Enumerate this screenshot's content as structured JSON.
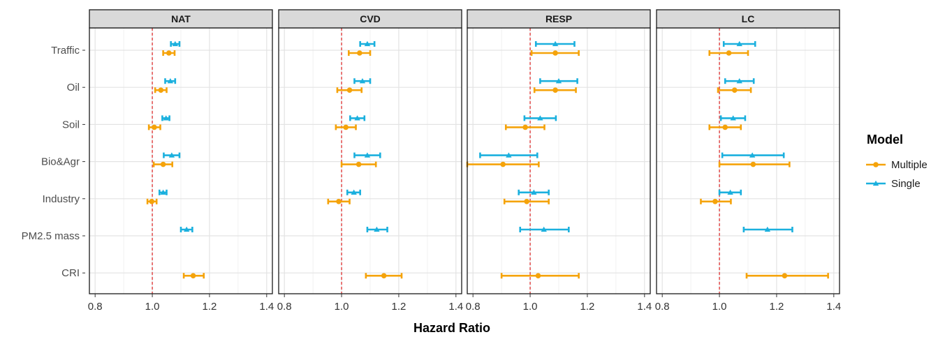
{
  "chart_data": {
    "type": "forest",
    "xlabel": "Hazard Ratio",
    "xlim": [
      0.78,
      1.42
    ],
    "xticks": [
      0.8,
      1.0,
      1.2,
      1.4
    ],
    "xtick_labels": [
      "0.8",
      "1.0",
      "1.2",
      "1.4"
    ],
    "reference_line": 1.0,
    "categories": [
      "Traffic",
      "Oil",
      "Soil",
      "Bio&Agr",
      "Industry",
      "PM2.5 mass",
      "CRI"
    ],
    "legend": {
      "title": "Model",
      "entries": [
        {
          "name": "Multiple",
          "color": "#F5A30A",
          "marker": "circle"
        },
        {
          "name": "Single",
          "color": "#1BB0DE",
          "marker": "triangle"
        }
      ]
    },
    "panels": [
      {
        "title": "NAT",
        "series": [
          {
            "name": "Single",
            "points": [
              {
                "category": "Traffic",
                "est": 1.08,
                "lo": 1.065,
                "hi": 1.095
              },
              {
                "category": "Oil",
                "est": 1.063,
                "lo": 1.045,
                "hi": 1.08
              },
              {
                "category": "Soil",
                "est": 1.048,
                "lo": 1.035,
                "hi": 1.06
              },
              {
                "category": "Bio&Agr",
                "est": 1.068,
                "lo": 1.04,
                "hi": 1.095
              },
              {
                "category": "Industry",
                "est": 1.038,
                "lo": 1.025,
                "hi": 1.05
              },
              {
                "category": "PM2.5 mass",
                "est": 1.12,
                "lo": 1.1,
                "hi": 1.14
              }
            ]
          },
          {
            "name": "Multiple",
            "points": [
              {
                "category": "Traffic",
                "est": 1.058,
                "lo": 1.038,
                "hi": 1.078
              },
              {
                "category": "Oil",
                "est": 1.03,
                "lo": 1.01,
                "hi": 1.05
              },
              {
                "category": "Soil",
                "est": 1.007,
                "lo": 0.988,
                "hi": 1.028
              },
              {
                "category": "Bio&Agr",
                "est": 1.038,
                "lo": 1.005,
                "hi": 1.07
              },
              {
                "category": "Industry",
                "est": 0.998,
                "lo": 0.983,
                "hi": 1.015
              },
              {
                "category": "CRI",
                "est": 1.143,
                "lo": 1.11,
                "hi": 1.18
              }
            ]
          }
        ]
      },
      {
        "title": "CVD",
        "series": [
          {
            "name": "Single",
            "points": [
              {
                "category": "Traffic",
                "est": 1.09,
                "lo": 1.065,
                "hi": 1.115
              },
              {
                "category": "Oil",
                "est": 1.073,
                "lo": 1.045,
                "hi": 1.1
              },
              {
                "category": "Soil",
                "est": 1.055,
                "lo": 1.03,
                "hi": 1.08
              },
              {
                "category": "Bio&Agr",
                "est": 1.09,
                "lo": 1.045,
                "hi": 1.135
              },
              {
                "category": "Industry",
                "est": 1.043,
                "lo": 1.02,
                "hi": 1.065
              },
              {
                "category": "PM2.5 mass",
                "est": 1.123,
                "lo": 1.09,
                "hi": 1.16
              }
            ]
          },
          {
            "name": "Multiple",
            "points": [
              {
                "category": "Traffic",
                "est": 1.063,
                "lo": 1.025,
                "hi": 1.1
              },
              {
                "category": "Oil",
                "est": 1.028,
                "lo": 0.985,
                "hi": 1.07
              },
              {
                "category": "Soil",
                "est": 1.015,
                "lo": 0.98,
                "hi": 1.05
              },
              {
                "category": "Bio&Agr",
                "est": 1.06,
                "lo": 1.0,
                "hi": 1.12
              },
              {
                "category": "Industry",
                "est": 0.99,
                "lo": 0.953,
                "hi": 1.028
              },
              {
                "category": "CRI",
                "est": 1.148,
                "lo": 1.085,
                "hi": 1.21
              }
            ]
          }
        ]
      },
      {
        "title": "RESP",
        "series": [
          {
            "name": "Single",
            "points": [
              {
                "category": "Traffic",
                "est": 1.088,
                "lo": 1.02,
                "hi": 1.155
              },
              {
                "category": "Oil",
                "est": 1.1,
                "lo": 1.035,
                "hi": 1.165
              },
              {
                "category": "Soil",
                "est": 1.035,
                "lo": 0.98,
                "hi": 1.09
              },
              {
                "category": "Bio&Agr",
                "est": 0.925,
                "lo": 0.825,
                "hi": 1.025
              },
              {
                "category": "Industry",
                "est": 1.013,
                "lo": 0.96,
                "hi": 1.065
              },
              {
                "category": "PM2.5 mass",
                "est": 1.048,
                "lo": 0.965,
                "hi": 1.135
              }
            ]
          },
          {
            "name": "Multiple",
            "points": [
              {
                "category": "Traffic",
                "est": 1.088,
                "lo": 1.005,
                "hi": 1.17
              },
              {
                "category": "Oil",
                "est": 1.088,
                "lo": 1.015,
                "hi": 1.16
              },
              {
                "category": "Soil",
                "est": 0.983,
                "lo": 0.915,
                "hi": 1.05
              },
              {
                "category": "Bio&Agr",
                "est": 0.905,
                "lo": 0.78,
                "hi": 1.03
              },
              {
                "category": "Industry",
                "est": 0.988,
                "lo": 0.91,
                "hi": 1.065
              },
              {
                "category": "CRI",
                "est": 1.028,
                "lo": 0.9,
                "hi": 1.17
              }
            ]
          }
        ]
      },
      {
        "title": "LC",
        "series": [
          {
            "name": "Single",
            "points": [
              {
                "category": "Traffic",
                "est": 1.07,
                "lo": 1.015,
                "hi": 1.125
              },
              {
                "category": "Oil",
                "est": 1.07,
                "lo": 1.02,
                "hi": 1.12
              },
              {
                "category": "Soil",
                "est": 1.048,
                "lo": 1.005,
                "hi": 1.09
              },
              {
                "category": "Bio&Agr",
                "est": 1.115,
                "lo": 1.01,
                "hi": 1.225
              },
              {
                "category": "Industry",
                "est": 1.038,
                "lo": 1.0,
                "hi": 1.075
              },
              {
                "category": "PM2.5 mass",
                "est": 1.168,
                "lo": 1.085,
                "hi": 1.255
              }
            ]
          },
          {
            "name": "Multiple",
            "points": [
              {
                "category": "Traffic",
                "est": 1.033,
                "lo": 0.965,
                "hi": 1.1
              },
              {
                "category": "Oil",
                "est": 1.053,
                "lo": 0.995,
                "hi": 1.11
              },
              {
                "category": "Soil",
                "est": 1.02,
                "lo": 0.965,
                "hi": 1.075
              },
              {
                "category": "Bio&Agr",
                "est": 1.118,
                "lo": 1.0,
                "hi": 1.245
              },
              {
                "category": "Industry",
                "est": 0.985,
                "lo": 0.935,
                "hi": 1.04
              },
              {
                "category": "CRI",
                "est": 1.228,
                "lo": 1.095,
                "hi": 1.38
              }
            ]
          }
        ]
      }
    ]
  }
}
